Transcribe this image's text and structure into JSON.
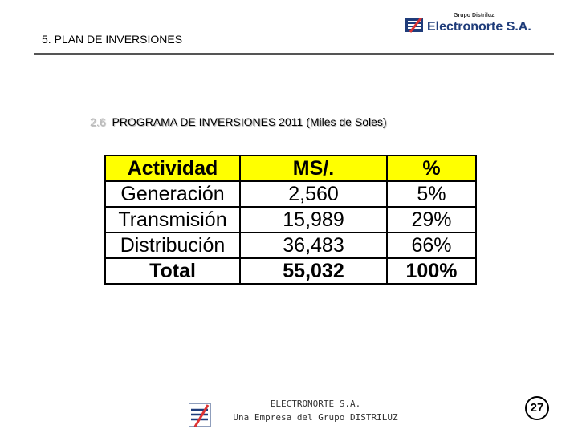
{
  "header": {
    "title": "5.  PLAN DE INVERSIONES",
    "logo_group": "Grupo Distriluz",
    "logo_name": "Electronorte S.A."
  },
  "section": {
    "number": "2.6",
    "title": "PROGRAMA DE INVERSIONES 2011 (Miles de Soles)"
  },
  "table": {
    "columns": [
      "Actividad",
      "MS/.",
      "%"
    ],
    "rows": [
      [
        "Generación",
        "2,560",
        "5%"
      ],
      [
        "Transmisión",
        "15,989",
        "29%"
      ],
      [
        "Distribución",
        "36,483",
        "66%"
      ]
    ],
    "total": [
      "Total",
      "55,032",
      "100%"
    ]
  },
  "footer": {
    "line1": "ELECTRONORTE S.A.",
    "line2": "Una Empresa del Grupo DISTRILUZ",
    "page": "27"
  }
}
